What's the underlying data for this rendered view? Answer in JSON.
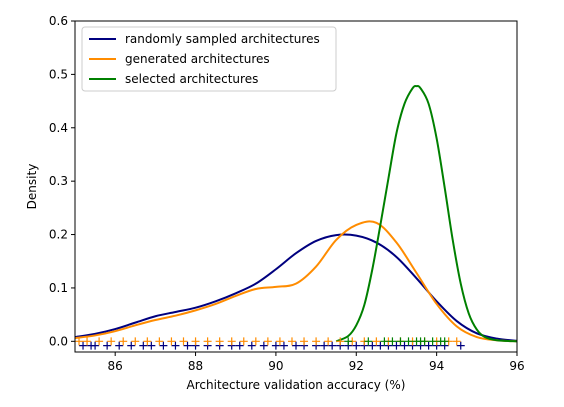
{
  "chart_data": {
    "type": "line",
    "title": "",
    "xlabel": "Architecture validation accuracy (%)",
    "ylabel": "Density",
    "xlim": [
      85,
      96
    ],
    "ylim": [
      -0.02,
      0.6
    ],
    "xticks": [
      86,
      88,
      90,
      92,
      94,
      96
    ],
    "xtick_labels": [
      "86",
      "88",
      "90",
      "92",
      "94",
      "96"
    ],
    "yticks": [
      0.0,
      0.1,
      0.2,
      0.3,
      0.4,
      0.5,
      0.6
    ],
    "ytick_labels": [
      "0.0",
      "0.1",
      "0.2",
      "0.3",
      "0.4",
      "0.5",
      "0.6"
    ],
    "grid": false,
    "legend_position": "top-left",
    "series": [
      {
        "name": "randomly sampled architectures",
        "color": "#00007f",
        "x": [
          85.0,
          85.5,
          86.0,
          86.5,
          87.0,
          87.5,
          88.0,
          88.5,
          89.0,
          89.5,
          90.0,
          90.5,
          91.0,
          91.5,
          92.0,
          92.5,
          93.0,
          93.5,
          94.0,
          94.5,
          95.0,
          95.5,
          96.0
        ],
        "y": [
          0.008,
          0.014,
          0.023,
          0.035,
          0.047,
          0.055,
          0.063,
          0.075,
          0.09,
          0.108,
          0.135,
          0.165,
          0.188,
          0.199,
          0.198,
          0.185,
          0.158,
          0.118,
          0.075,
          0.038,
          0.015,
          0.005,
          0.001
        ]
      },
      {
        "name": "generated architectures",
        "color": "#ff8c00",
        "x": [
          85.0,
          85.5,
          86.0,
          86.5,
          87.0,
          87.5,
          88.0,
          88.5,
          89.0,
          89.5,
          90.0,
          90.5,
          91.0,
          91.5,
          92.0,
          92.5,
          93.0,
          93.5,
          94.0,
          94.5,
          95.0,
          95.5,
          96.0
        ],
        "y": [
          0.006,
          0.011,
          0.019,
          0.03,
          0.04,
          0.048,
          0.058,
          0.07,
          0.085,
          0.098,
          0.102,
          0.108,
          0.14,
          0.19,
          0.218,
          0.222,
          0.185,
          0.128,
          0.07,
          0.028,
          0.008,
          0.002,
          0.0
        ]
      },
      {
        "name": "selected architectures",
        "color": "#008000",
        "x": [
          91.5,
          91.8,
          92.0,
          92.2,
          92.4,
          92.6,
          92.8,
          93.0,
          93.2,
          93.4,
          93.5,
          93.6,
          93.8,
          94.0,
          94.2,
          94.4,
          94.6,
          94.8,
          95.0,
          95.2,
          95.5,
          96.0
        ],
        "y": [
          0.0,
          0.01,
          0.03,
          0.068,
          0.135,
          0.218,
          0.305,
          0.39,
          0.445,
          0.474,
          0.478,
          0.474,
          0.445,
          0.38,
          0.288,
          0.19,
          0.108,
          0.052,
          0.022,
          0.008,
          0.002,
          0.0
        ]
      }
    ],
    "rug": [
      {
        "series": "randomly sampled architectures",
        "color": "#00007f",
        "y": -0.008,
        "x": [
          85.2,
          85.4,
          85.5,
          85.8,
          86.1,
          86.4,
          86.7,
          86.9,
          87.2,
          87.5,
          87.8,
          88.0,
          88.3,
          88.6,
          88.9,
          89.1,
          89.4,
          89.7,
          90.0,
          90.2,
          90.5,
          90.7,
          91.0,
          91.2,
          91.4,
          91.6,
          91.8,
          92.0,
          92.2,
          92.4,
          92.6,
          92.8,
          93.0,
          93.2,
          93.4,
          93.6,
          93.8,
          94.0,
          94.2,
          94.6
        ]
      },
      {
        "series": "generated architectures",
        "color": "#ff8c00",
        "y": 0.0,
        "x": [
          85.1,
          85.3,
          85.6,
          85.9,
          86.2,
          86.5,
          86.8,
          87.1,
          87.4,
          87.7,
          88.0,
          88.3,
          88.6,
          88.9,
          89.2,
          89.5,
          89.8,
          90.1,
          90.4,
          90.7,
          91.0,
          91.3,
          91.6,
          91.9,
          92.2,
          92.5,
          92.8,
          93.1,
          93.4,
          93.7,
          94.0,
          94.3,
          94.5
        ]
      },
      {
        "series": "selected architectures",
        "color": "#008000",
        "y": 0.0,
        "x": [
          91.8,
          92.3,
          92.7,
          92.9,
          93.1,
          93.3,
          93.5,
          93.6,
          93.7,
          93.9,
          94.1,
          94.2
        ]
      }
    ]
  }
}
